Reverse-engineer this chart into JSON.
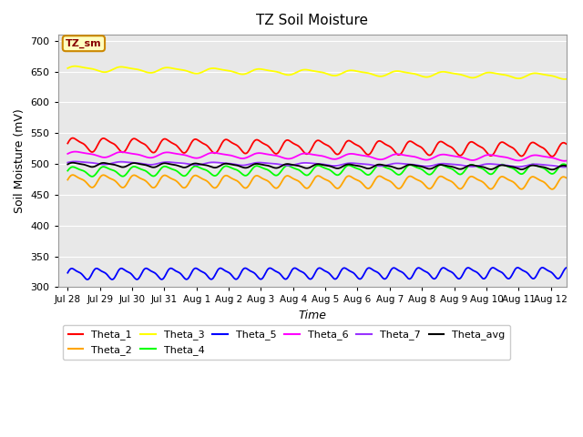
{
  "title": "TZ Soil Moisture",
  "ylabel": "Soil Moisture (mV)",
  "xlabel": "Time",
  "ylim": [
    300,
    710
  ],
  "yticks": [
    300,
    350,
    400,
    450,
    500,
    550,
    600,
    650,
    700
  ],
  "bg_color": "#E8E8E8",
  "fig_color": "#FFFFFF",
  "series": {
    "Theta_1": {
      "color": "#FF0000",
      "base": 532,
      "amp": 10,
      "trend": -0.5,
      "freq": 1.05
    },
    "Theta_2": {
      "color": "#FFA500",
      "base": 473,
      "amp": 9,
      "trend": -0.2,
      "freq": 1.05
    },
    "Theta_3": {
      "color": "#FFFF00",
      "base": 655,
      "amp": 4,
      "trend": -0.8,
      "freq": 0.7
    },
    "Theta_4": {
      "color": "#00FF00",
      "base": 488,
      "amp": 7,
      "trend": 0.3,
      "freq": 1.05
    },
    "Theta_5": {
      "color": "#0000FF",
      "base": 322,
      "amp": 8,
      "trend": 0.1,
      "freq": 1.3
    },
    "Theta_6": {
      "color": "#FF00FF",
      "base": 516,
      "amp": 4,
      "trend": -0.4,
      "freq": 0.7
    },
    "Theta_7": {
      "color": "#9933FF",
      "base": 502,
      "amp": 2,
      "trend": -0.3,
      "freq": 0.7
    },
    "Theta_avg": {
      "color": "#000000",
      "base": 499,
      "amp": 3,
      "trend": -0.3,
      "freq": 1.05
    }
  },
  "n_points": 800,
  "start_day": 0,
  "end_day": 15.5,
  "xtick_labels": [
    "Jul 28",
    "Jul 29",
    "Jul 30",
    "Jul 31",
    "Aug 1",
    "Aug 2",
    "Aug 3",
    "Aug 4",
    "Aug 5",
    "Aug 6",
    "Aug 7",
    "Aug 8",
    "Aug 9",
    "Aug 10",
    "Aug 11",
    "Aug 12"
  ],
  "xtick_positions": [
    0,
    1,
    2,
    3,
    4,
    5,
    6,
    7,
    8,
    9,
    10,
    11,
    12,
    13,
    14,
    15
  ],
  "legend_box_label": "TZ_sm",
  "legend_box_color": "#FFFFC0",
  "legend_box_edge": "#CC8800",
  "legend_row1": [
    "Theta_1",
    "Theta_2",
    "Theta_3",
    "Theta_4",
    "Theta_5",
    "Theta_6"
  ],
  "legend_row2": [
    "Theta_7",
    "Theta_avg"
  ]
}
